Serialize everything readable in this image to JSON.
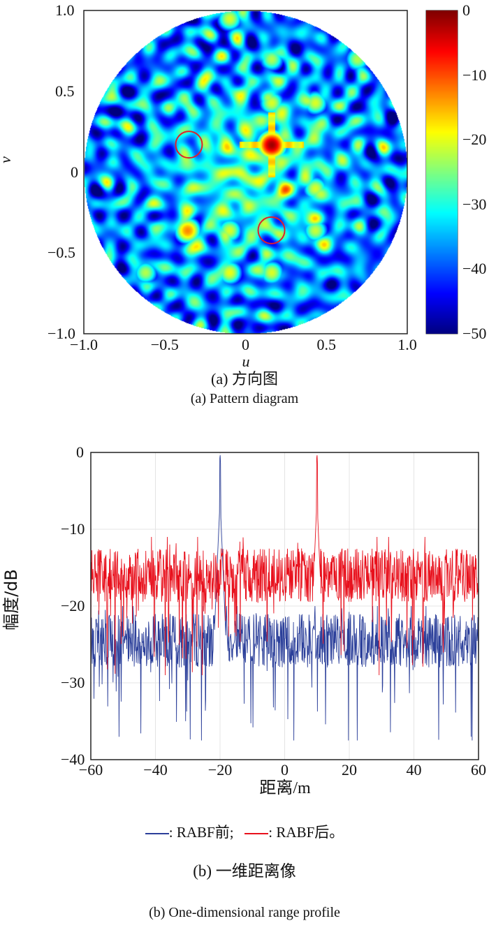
{
  "chart_data": [
    {
      "type": "heatmap",
      "title": "(a) 方向图",
      "subtitle": "(a) Pattern diagram",
      "xlabel": "u",
      "ylabel": "v",
      "xlim": [
        -1.0,
        1.0
      ],
      "ylim": [
        -1.0,
        1.0
      ],
      "x_ticks": [
        "−1.0",
        "−0.5",
        "0",
        "0.5",
        "1.0"
      ],
      "y_ticks": [
        "1.0",
        "0.5",
        "0",
        "−0.5",
        "−1.0"
      ],
      "colorbar": {
        "range": [
          -50,
          0
        ],
        "ticks": [
          "0",
          "−10",
          "−20",
          "−30",
          "−40",
          "−50"
        ],
        "colormap": "jet"
      },
      "mainlobe": {
        "u": 0.16,
        "v": 0.17,
        "value": 0
      },
      "grating_spots": [
        {
          "u": -0.1,
          "v": 0.95,
          "value": -20
        },
        {
          "u": 0.16,
          "v": 0.7,
          "value": -22
        },
        {
          "u": 0.69,
          "v": 0.7,
          "value": -22
        },
        {
          "u": 0.16,
          "v": 0.43,
          "value": -20
        },
        {
          "u": 0.43,
          "v": 0.43,
          "value": -20
        },
        {
          "u": 0.43,
          "v": -0.1,
          "value": -20
        },
        {
          "u": -0.36,
          "v": -0.36,
          "value": -12
        },
        {
          "u": -0.1,
          "v": -0.36,
          "value": -20
        },
        {
          "u": 0.43,
          "v": -0.36,
          "value": -21
        },
        {
          "u": -0.62,
          "v": -0.62,
          "value": -22
        },
        {
          "u": -0.1,
          "v": -0.62,
          "value": -19
        },
        {
          "u": 0.16,
          "v": -0.62,
          "value": -20
        }
      ],
      "annotations": [
        {
          "type": "circle",
          "u": -0.35,
          "v": 0.17,
          "color": "#e0202a"
        },
        {
          "type": "circle",
          "u": 0.16,
          "v": -0.36,
          "color": "#e0202a"
        }
      ],
      "background_level_db": -35
    },
    {
      "type": "line",
      "title": "(b) 一维距离像",
      "subtitle": "(b) One-dimensional range profile",
      "xlabel": "距离/m",
      "ylabel": "幅度/dB",
      "xlim": [
        -60,
        60
      ],
      "ylim": [
        -40,
        0
      ],
      "x_ticks": [
        "−60",
        "−40",
        "−20",
        "0",
        "20",
        "40",
        "60"
      ],
      "y_ticks": [
        "0",
        "−10",
        "−20",
        "−30",
        "−40"
      ],
      "grid": true,
      "legend": {
        "placement": "bottom",
        "prefix": ": ",
        "separator": ";",
        "end": "。"
      },
      "series": [
        {
          "name": "RABF前",
          "color": "#2b3f9a",
          "peak_x": -20,
          "peak_y": 0,
          "noise_mean": -24.5,
          "noise_min": -37.5,
          "noise_max": -20
        },
        {
          "name": "RABF后",
          "color": "#e8101c",
          "peak_x": 10,
          "peak_y": 0,
          "noise_mean": -16,
          "noise_min": -29,
          "noise_max": -11
        }
      ]
    }
  ]
}
